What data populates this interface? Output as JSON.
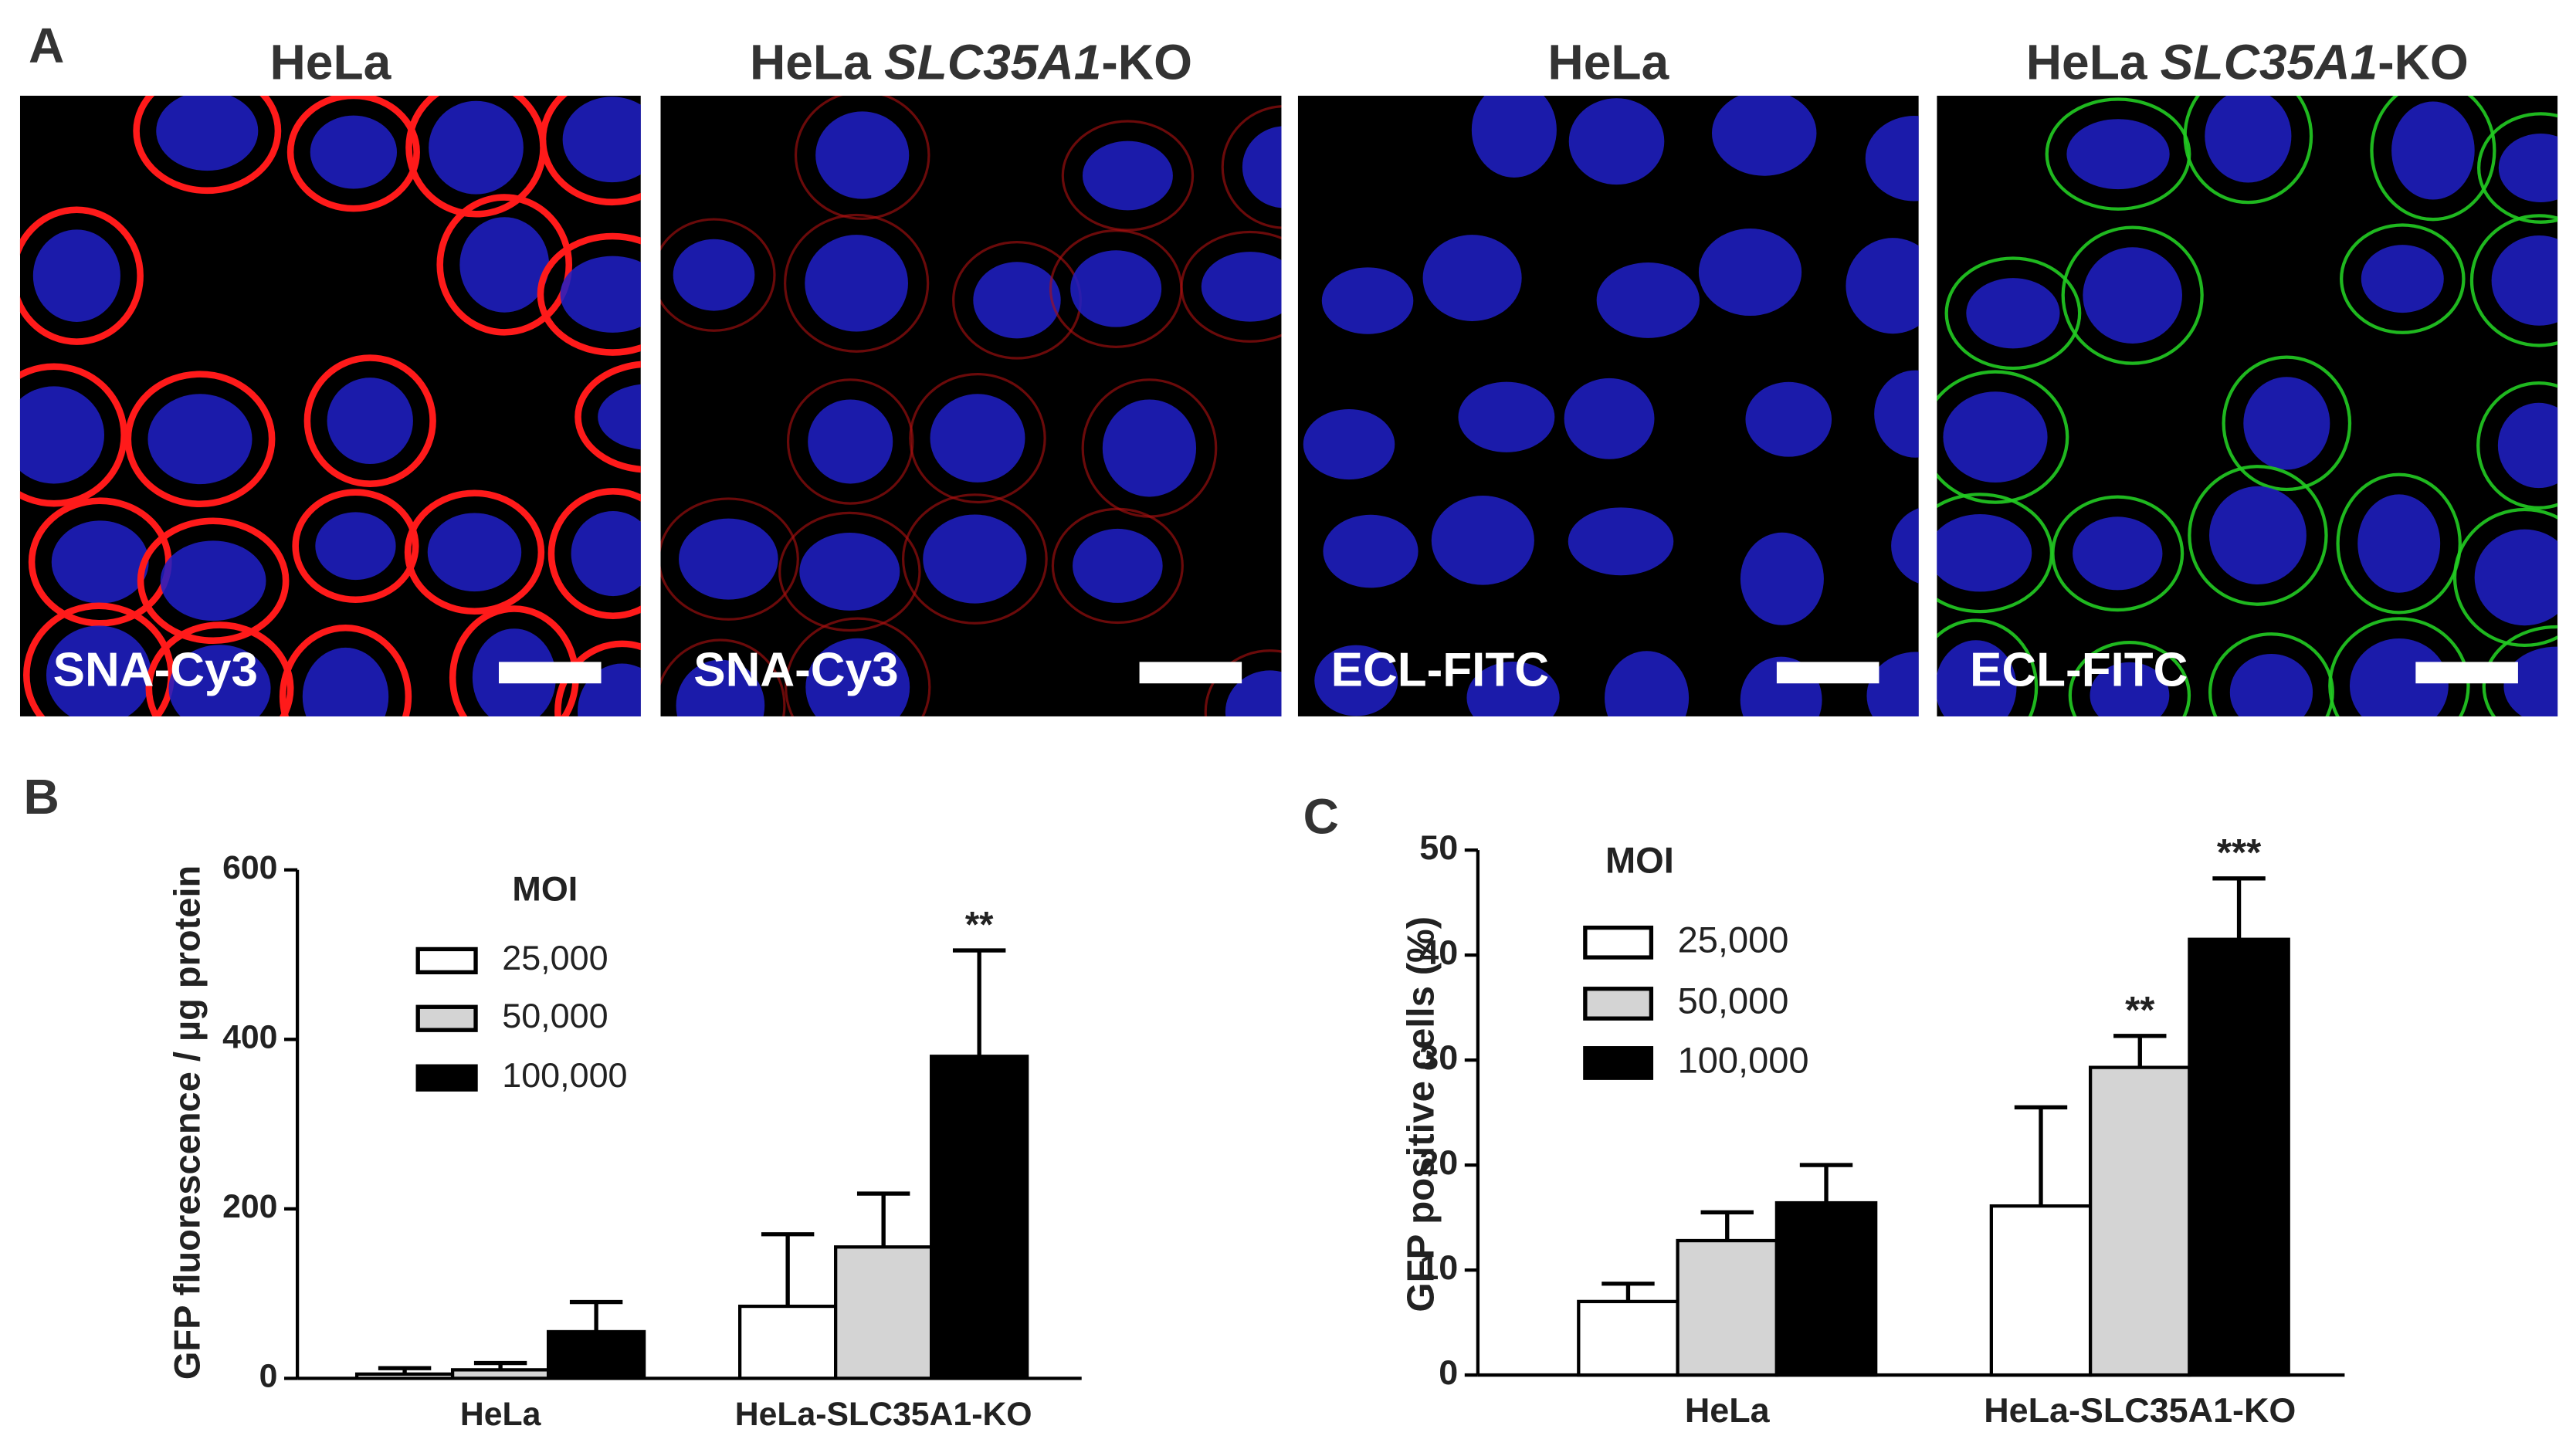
{
  "panel_a": {
    "label": "A",
    "images": [
      {
        "title": [
          {
            "text": "HeLa"
          }
        ],
        "stain": "SNA-Cy3"
      },
      {
        "title": [
          {
            "text": "HeLa"
          },
          {
            "text": "SLC35A1",
            "italic": true
          },
          {
            "text": "-KO"
          }
        ],
        "stain": "SNA-Cy3"
      },
      {
        "title": [
          {
            "text": "HeLa"
          }
        ],
        "stain": "ECL-FITC"
      },
      {
        "title": [
          {
            "text": "HeLa"
          },
          {
            "text": "SLC35A1",
            "italic": true
          },
          {
            "text": "-KO"
          }
        ],
        "stain": "ECL-FITC"
      }
    ]
  },
  "chart_data": [
    {
      "type": "bar",
      "label": "B",
      "ylabel": "GFP fluorescence / µg protein",
      "legend_title": "MOI",
      "categories": [
        "HeLa",
        "HeLa-SLC35A1-KO"
      ],
      "ylim": [
        0,
        600
      ],
      "yticks": [
        0,
        200,
        400,
        600
      ],
      "series": [
        {
          "name": "25,000",
          "color": "#ffffff",
          "values": [
            5,
            85
          ],
          "errors": [
            7,
            85
          ],
          "significance": [
            null,
            null
          ]
        },
        {
          "name": "50,000",
          "color": "#d4d4d4",
          "values": [
            10,
            155
          ],
          "errors": [
            8,
            63
          ],
          "significance": [
            null,
            null
          ]
        },
        {
          "name": "100,000",
          "color": "#000000",
          "values": [
            55,
            380
          ],
          "errors": [
            35,
            125
          ],
          "significance": [
            null,
            "**"
          ]
        }
      ]
    },
    {
      "type": "bar",
      "label": "C",
      "ylabel": "GFP positive cells (%)",
      "legend_title": "MOI",
      "categories": [
        "HeLa",
        "HeLa-SLC35A1-KO"
      ],
      "ylim": [
        0,
        50
      ],
      "yticks": [
        0,
        10,
        20,
        30,
        40,
        50
      ],
      "series": [
        {
          "name": "25,000",
          "color": "#ffffff",
          "values": [
            7,
            16.1
          ],
          "errors": [
            1.7,
            9.4
          ],
          "significance": [
            null,
            null
          ]
        },
        {
          "name": "50,000",
          "color": "#d4d4d4",
          "values": [
            12.8,
            29.3
          ],
          "errors": [
            2.7,
            3
          ],
          "significance": [
            null,
            "**"
          ]
        },
        {
          "name": "100,000",
          "color": "#000000",
          "values": [
            16.4,
            41.5
          ],
          "errors": [
            3.6,
            5.8
          ],
          "significance": [
            null,
            "***"
          ]
        }
      ]
    }
  ]
}
